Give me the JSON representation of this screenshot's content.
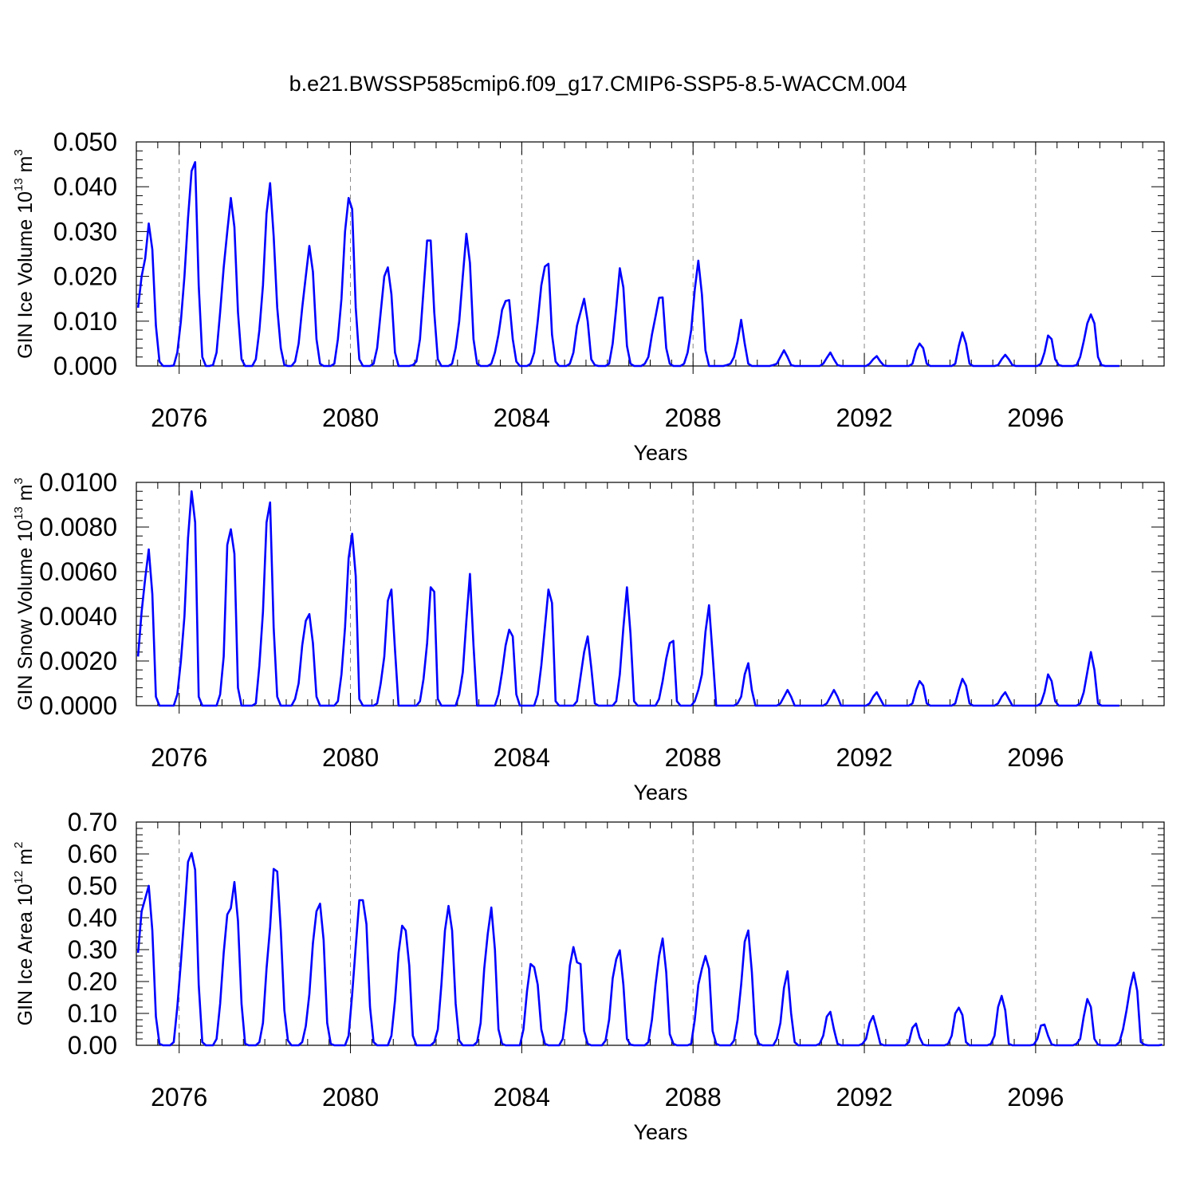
{
  "figure": {
    "title": "b.e21.BWSSP585cmip6.f09_g17.CMIP6-SSP5-8.5-WACCM.004",
    "line_color": "#0000ff"
  },
  "chart_data": [
    {
      "type": "line",
      "title": "b.e21.BWSSP585cmip6.f09_g17.CMIP6-SSP5-8.5-WACCM.004",
      "xlabel": "Years",
      "ylabel": {
        "text": "GIN Ice Volume 10",
        "sup": "13",
        "unit": " m",
        "unit_sup": "3"
      },
      "xlim": [
        2075,
        2099
      ],
      "ylim": [
        0,
        0.05
      ],
      "x_ticks": [
        2076,
        2080,
        2084,
        2088,
        2092,
        2096
      ],
      "x_tick_labels": [
        "2076",
        "2080",
        "2084",
        "2088",
        "2092",
        "2096"
      ],
      "y_ticks": [
        0,
        0.01,
        0.02,
        0.03,
        0.04,
        0.05
      ],
      "y_tick_labels": [
        "0.000",
        "0.010",
        "0.020",
        "0.030",
        "0.040",
        "0.050"
      ],
      "grid": "vertical dashed at major x ticks",
      "x_start": 2075.04,
      "x_step": 0.083333,
      "series": [
        {
          "color": "#0000ff",
          "values": [
            0.013,
            0.02,
            0.024,
            0.0318,
            0.026,
            0.009,
            0.001,
            0.0,
            0.0,
            0.0,
            0.0001,
            0.003,
            0.01,
            0.02,
            0.033,
            0.0435,
            0.0455,
            0.018,
            0.002,
            0.0,
            0.0,
            0.0002,
            0.003,
            0.012,
            0.022,
            0.03,
            0.0375,
            0.031,
            0.012,
            0.0015,
            0.0,
            0.0,
            0.0,
            0.0015,
            0.008,
            0.018,
            0.034,
            0.0408,
            0.029,
            0.013,
            0.004,
            0.0002,
            0.0,
            0.0,
            0.001,
            0.005,
            0.013,
            0.02,
            0.0268,
            0.021,
            0.006,
            0.0005,
            0.0,
            0.0,
            0.0,
            0.0005,
            0.006,
            0.015,
            0.03,
            0.0375,
            0.035,
            0.013,
            0.0015,
            0.0,
            0.0,
            0.0,
            0.0005,
            0.004,
            0.012,
            0.02,
            0.022,
            0.016,
            0.003,
            0.0,
            0.0,
            0.0,
            0.0,
            0.0002,
            0.001,
            0.006,
            0.017,
            0.028,
            0.028,
            0.012,
            0.0015,
            0.0,
            0.0,
            0.0,
            0.0005,
            0.004,
            0.01,
            0.02,
            0.0295,
            0.023,
            0.006,
            0.0005,
            0.0,
            0.0,
            0.0,
            0.0005,
            0.003,
            0.007,
            0.0125,
            0.0145,
            0.0147,
            0.006,
            0.001,
            0.0,
            0.0,
            0.0,
            0.0005,
            0.003,
            0.01,
            0.018,
            0.0222,
            0.0228,
            0.007,
            0.001,
            0.0,
            0.0,
            0.0,
            0.0005,
            0.003,
            0.009,
            0.012,
            0.015,
            0.01,
            0.0015,
            0.0002,
            0.0,
            0.0,
            0.0,
            0.0005,
            0.005,
            0.013,
            0.0218,
            0.0175,
            0.0045,
            0.0005,
            0.0,
            0.0,
            0.0,
            0.0005,
            0.002,
            0.007,
            0.011,
            0.0152,
            0.0153,
            0.004,
            0.0005,
            0.0,
            0.0,
            0.0,
            0.0005,
            0.003,
            0.008,
            0.017,
            0.0235,
            0.016,
            0.0035,
            0.0,
            0.0,
            0.0,
            0.0,
            0.0,
            0.0002,
            0.0005,
            0.002,
            0.0055,
            0.0103,
            0.005,
            0.0005,
            0.0,
            0.0,
            0.0,
            0.0,
            0.0,
            0.0,
            0.0002,
            0.0005,
            0.002,
            0.0035,
            0.002,
            0.0002,
            0.0,
            0.0,
            0.0,
            0.0,
            0.0,
            0.0,
            0.0,
            0.0,
            0.0005,
            0.0018,
            0.003,
            0.0015,
            0.0002,
            0.0,
            0.0,
            0.0,
            0.0,
            0.0,
            0.0,
            0.0,
            0.0,
            0.0005,
            0.0015,
            0.0022,
            0.001,
            0.0001,
            0.0,
            0.0,
            0.0,
            0.0,
            0.0,
            0.0,
            0.0,
            0.0005,
            0.0035,
            0.005,
            0.004,
            0.0005,
            0.0,
            0.0,
            0.0,
            0.0,
            0.0,
            0.0,
            0.0,
            0.0005,
            0.0045,
            0.0075,
            0.005,
            0.0005,
            0.0,
            0.0,
            0.0,
            0.0,
            0.0,
            0.0,
            0.0,
            0.0002,
            0.0015,
            0.0025,
            0.0015,
            0.0002,
            0.0,
            0.0,
            0.0,
            0.0,
            0.0,
            0.0,
            0.0,
            0.0005,
            0.003,
            0.0068,
            0.006,
            0.0015,
            0.0002,
            0.0,
            0.0,
            0.0,
            0.0,
            0.0002,
            0.002,
            0.0055,
            0.0095,
            0.0115,
            0.0095,
            0.002,
            0.0002,
            0.0,
            0.0,
            0.0,
            0.0,
            0.0
          ]
        }
      ]
    },
    {
      "type": "line",
      "xlabel": "Years",
      "ylabel": {
        "text": "GIN Snow Volume 10",
        "sup": "13",
        "unit": " m",
        "unit_sup": "3"
      },
      "xlim": [
        2075,
        2099
      ],
      "ylim": [
        0,
        0.01
      ],
      "x_ticks": [
        2076,
        2080,
        2084,
        2088,
        2092,
        2096
      ],
      "x_tick_labels": [
        "2076",
        "2080",
        "2084",
        "2088",
        "2092",
        "2096"
      ],
      "y_ticks": [
        0,
        0.002,
        0.004,
        0.006,
        0.008,
        0.01
      ],
      "y_tick_labels": [
        "0.0000",
        "0.0020",
        "0.0040",
        "0.0060",
        "0.0080",
        "0.0100"
      ],
      "grid": "vertical dashed at major x ticks",
      "x_start": 2075.04,
      "x_step": 0.083333,
      "series": [
        {
          "color": "#0000ff",
          "values": [
            0.0022,
            0.0042,
            0.0057,
            0.007,
            0.005,
            0.0004,
            0.0,
            0.0,
            0.0,
            0.0,
            0.0,
            0.0005,
            0.002,
            0.004,
            0.0075,
            0.0096,
            0.0082,
            0.0004,
            0.0,
            0.0,
            0.0,
            0.0,
            0.0,
            0.0005,
            0.0022,
            0.0072,
            0.0079,
            0.0068,
            0.0008,
            0.0,
            0.0,
            0.0,
            0.0,
            0.0001,
            0.0018,
            0.0042,
            0.0082,
            0.0091,
            0.0035,
            0.0004,
            0.0,
            0.0,
            0.0,
            0.0,
            0.0003,
            0.001,
            0.0027,
            0.0038,
            0.0041,
            0.0028,
            0.0004,
            0.0,
            0.0,
            0.0,
            0.0,
            0.0,
            0.0002,
            0.0014,
            0.0035,
            0.0066,
            0.0077,
            0.0058,
            0.0003,
            0.0,
            0.0,
            0.0,
            0.0,
            0.0001,
            0.001,
            0.0022,
            0.0047,
            0.0052,
            0.0025,
            0.0,
            0.0,
            0.0,
            0.0,
            0.0,
            0.0,
            0.0002,
            0.0012,
            0.0028,
            0.0053,
            0.0051,
            0.0003,
            0.0,
            0.0,
            0.0,
            0.0,
            0.0,
            0.0005,
            0.0015,
            0.0038,
            0.0059,
            0.0027,
            0.0,
            0.0,
            0.0,
            0.0,
            0.0,
            0.0,
            0.0005,
            0.0015,
            0.0027,
            0.0034,
            0.0031,
            0.0005,
            0.0,
            0.0,
            0.0,
            0.0,
            0.0,
            0.0005,
            0.0018,
            0.0035,
            0.0052,
            0.0046,
            0.0002,
            0.0,
            0.0,
            0.0,
            0.0,
            0.0,
            0.0002,
            0.0013,
            0.0024,
            0.0031,
            0.0017,
            0.0001,
            0.0,
            0.0,
            0.0,
            0.0,
            0.0,
            0.0002,
            0.0014,
            0.0035,
            0.0053,
            0.0032,
            0.0002,
            0.0,
            0.0,
            0.0,
            0.0,
            0.0,
            0.0,
            0.0003,
            0.0011,
            0.0021,
            0.0028,
            0.0029,
            0.0002,
            0.0,
            0.0,
            0.0,
            0.0,
            0.0002,
            0.0007,
            0.0014,
            0.0033,
            0.0045,
            0.0023,
            0.0,
            0.0,
            0.0,
            0.0,
            0.0,
            0.0,
            0.0001,
            0.0004,
            0.0014,
            0.0019,
            0.0007,
            0.0,
            0.0,
            0.0,
            0.0,
            0.0,
            0.0,
            0.0,
            0.0001,
            0.0004,
            0.0007,
            0.0004,
            0.0,
            0.0,
            0.0,
            0.0,
            0.0,
            0.0,
            0.0,
            0.0,
            0.0,
            0.0001,
            0.0004,
            0.0007,
            0.0004,
            0.0,
            0.0,
            0.0,
            0.0,
            0.0,
            0.0,
            0.0,
            0.0,
            0.0001,
            0.0004,
            0.0006,
            0.0003,
            0.0,
            0.0,
            0.0,
            0.0,
            0.0,
            0.0,
            0.0,
            0.0,
            0.0001,
            0.0007,
            0.0011,
            0.0009,
            0.0001,
            0.0,
            0.0,
            0.0,
            0.0,
            0.0,
            0.0,
            0.0,
            0.0001,
            0.0007,
            0.0012,
            0.0009,
            0.0001,
            0.0,
            0.0,
            0.0,
            0.0,
            0.0,
            0.0,
            0.0,
            0.0001,
            0.0004,
            0.0006,
            0.0003,
            0.0,
            0.0,
            0.0,
            0.0,
            0.0,
            0.0,
            0.0,
            0.0,
            0.0001,
            0.0006,
            0.0014,
            0.0011,
            0.0002,
            0.0,
            0.0,
            0.0,
            0.0,
            0.0,
            0.0,
            0.0001,
            0.0006,
            0.0015,
            0.0024,
            0.0016,
            0.0001,
            0.0,
            0.0,
            0.0,
            0.0,
            0.0,
            0.0
          ]
        }
      ]
    },
    {
      "type": "line",
      "xlabel": "Years",
      "ylabel": {
        "text": "GIN Ice Area 10",
        "sup": "12",
        "unit": " m",
        "unit_sup": "2"
      },
      "xlim": [
        2075,
        2099
      ],
      "ylim": [
        0,
        0.7
      ],
      "x_ticks": [
        2076,
        2080,
        2084,
        2088,
        2092,
        2096
      ],
      "x_tick_labels": [
        "2076",
        "2080",
        "2084",
        "2088",
        "2092",
        "2096"
      ],
      "y_ticks": [
        0,
        0.1,
        0.2,
        0.3,
        0.4,
        0.5,
        0.6,
        0.7
      ],
      "y_tick_labels": [
        "0.00",
        "0.10",
        "0.20",
        "0.30",
        "0.40",
        "0.50",
        "0.60",
        "0.70"
      ],
      "grid": "vertical dashed at major x ticks",
      "x_start": 2075.04,
      "x_step": 0.083333,
      "series": [
        {
          "color": "#0000ff",
          "values": [
            0.29,
            0.42,
            0.46,
            0.5,
            0.36,
            0.09,
            0.005,
            0.0,
            0.0,
            0.0,
            0.01,
            0.12,
            0.26,
            0.41,
            0.575,
            0.603,
            0.55,
            0.19,
            0.01,
            0.0,
            0.0,
            0.0,
            0.02,
            0.13,
            0.29,
            0.41,
            0.43,
            0.512,
            0.39,
            0.13,
            0.005,
            0.0,
            0.0,
            0.0,
            0.01,
            0.07,
            0.24,
            0.37,
            0.553,
            0.545,
            0.36,
            0.11,
            0.015,
            0.0,
            0.0,
            0.0,
            0.01,
            0.06,
            0.16,
            0.32,
            0.42,
            0.444,
            0.33,
            0.07,
            0.005,
            0.0,
            0.0,
            0.0,
            0.0,
            0.03,
            0.16,
            0.31,
            0.455,
            0.455,
            0.38,
            0.12,
            0.01,
            0.0,
            0.0,
            0.0,
            0.0,
            0.03,
            0.14,
            0.29,
            0.375,
            0.36,
            0.25,
            0.03,
            0.0,
            0.0,
            0.0,
            0.0,
            0.0,
            0.01,
            0.05,
            0.19,
            0.36,
            0.437,
            0.36,
            0.13,
            0.015,
            0.0,
            0.0,
            0.0,
            0.0,
            0.01,
            0.07,
            0.24,
            0.35,
            0.432,
            0.3,
            0.05,
            0.005,
            0.0,
            0.0,
            0.0,
            0.0,
            0.0,
            0.05,
            0.17,
            0.255,
            0.245,
            0.19,
            0.05,
            0.005,
            0.0,
            0.0,
            0.0,
            0.0,
            0.02,
            0.11,
            0.25,
            0.308,
            0.26,
            0.255,
            0.045,
            0.005,
            0.0,
            0.0,
            0.0,
            0.0,
            0.015,
            0.08,
            0.21,
            0.27,
            0.298,
            0.19,
            0.02,
            0.002,
            0.0,
            0.0,
            0.0,
            0.0,
            0.01,
            0.08,
            0.19,
            0.28,
            0.335,
            0.23,
            0.035,
            0.005,
            0.0,
            0.0,
            0.0,
            0.0,
            0.005,
            0.08,
            0.19,
            0.24,
            0.28,
            0.24,
            0.045,
            0.005,
            0.0,
            0.0,
            0.0,
            0.0,
            0.015,
            0.08,
            0.19,
            0.325,
            0.36,
            0.23,
            0.035,
            0.005,
            0.0,
            0.0,
            0.0,
            0.0,
            0.02,
            0.07,
            0.18,
            0.232,
            0.1,
            0.01,
            0.0,
            0.0,
            0.0,
            0.0,
            0.0,
            0.0,
            0.005,
            0.03,
            0.09,
            0.105,
            0.05,
            0.005,
            0.0,
            0.0,
            0.0,
            0.0,
            0.0,
            0.0,
            0.005,
            0.02,
            0.07,
            0.092,
            0.05,
            0.005,
            0.0,
            0.0,
            0.0,
            0.0,
            0.0,
            0.0,
            0.0,
            0.01,
            0.055,
            0.068,
            0.025,
            0.002,
            0.0,
            0.0,
            0.0,
            0.0,
            0.0,
            0.0,
            0.005,
            0.03,
            0.1,
            0.118,
            0.095,
            0.01,
            0.0,
            0.0,
            0.0,
            0.0,
            0.0,
            0.0,
            0.005,
            0.03,
            0.12,
            0.155,
            0.11,
            0.005,
            0.0,
            0.0,
            0.0,
            0.0,
            0.0,
            0.0,
            0.002,
            0.02,
            0.062,
            0.065,
            0.03,
            0.003,
            0.0,
            0.0,
            0.0,
            0.0,
            0.0,
            0.0,
            0.005,
            0.02,
            0.09,
            0.145,
            0.12,
            0.02,
            0.002,
            0.0,
            0.0,
            0.0,
            0.0,
            0.0,
            0.01,
            0.05,
            0.11,
            0.18,
            0.228,
            0.17,
            0.01,
            0.002,
            0.0,
            0.0,
            0.0,
            0.0,
            0.002
          ]
        }
      ]
    }
  ]
}
